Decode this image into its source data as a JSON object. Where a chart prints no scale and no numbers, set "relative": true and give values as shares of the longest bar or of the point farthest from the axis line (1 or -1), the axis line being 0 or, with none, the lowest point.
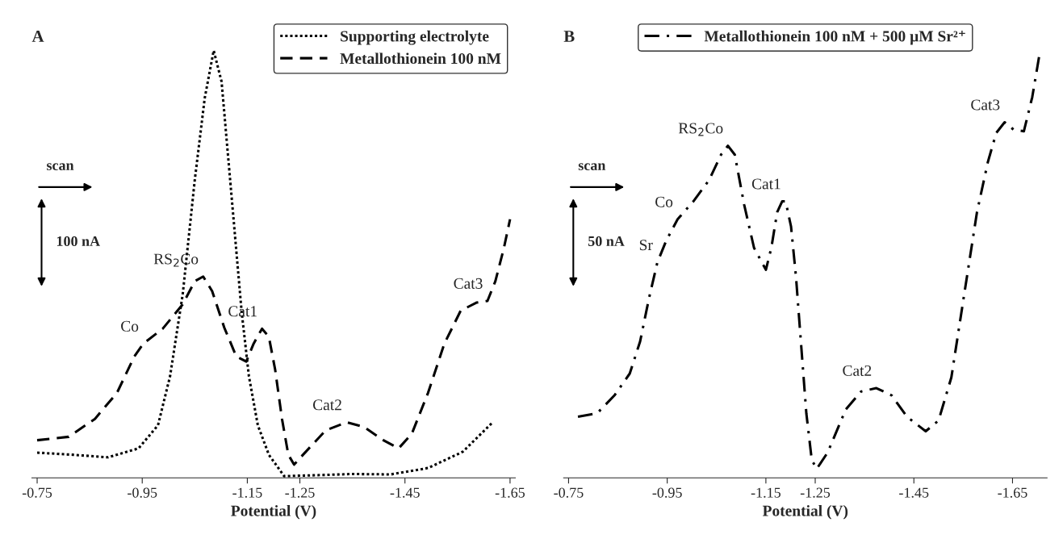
{
  "chart_data": [
    {
      "type": "line",
      "title": "A",
      "xlabel": "Potential (V)",
      "relative": true,
      "xlim": [
        -0.74,
        -1.66
      ],
      "xticks": [
        -0.75,
        -0.95,
        -1.15,
        -1.25,
        -1.45,
        -1.65
      ],
      "grid": false,
      "legend": "top right",
      "marker": "none",
      "annotations": [
        "scan",
        "100 nA",
        {
          "text": "Co",
          "x": -0.952,
          "y": 0.314
        },
        {
          "text": "RS$_{2}$Co",
          "x": -1.066,
          "y": 0.471
        },
        {
          "text": "Cat1",
          "x": -1.178,
          "y": 0.349
        },
        {
          "text": "Cat2",
          "x": -1.339,
          "y": 0.13
        },
        {
          "text": "Cat3",
          "x": -1.607,
          "y": 0.414
        }
      ],
      "series": [
        {
          "name": "Supporting electrolyte",
          "color": "#000000",
          "line_style": "dotted",
          "x": [
            -0.75,
            -0.818,
            -0.885,
            -0.943,
            -0.98,
            -1.003,
            -1.027,
            -1.05,
            -1.069,
            -1.086,
            -1.101,
            -1.12,
            -1.139,
            -1.153,
            -1.17,
            -1.191,
            -1.22,
            -1.278,
            -1.35,
            -1.423,
            -1.494,
            -1.56,
            -1.617
          ],
          "values": [
            0.059,
            0.054,
            0.048,
            0.069,
            0.123,
            0.238,
            0.429,
            0.697,
            0.889,
            1.0,
            0.927,
            0.659,
            0.391,
            0.238,
            0.123,
            0.054,
            0.004,
            0.006,
            0.009,
            0.008,
            0.023,
            0.061,
            0.13
          ]
        },
        {
          "name": "Metallothionein 100 nM",
          "color": "#000000",
          "line_style": "dashed",
          "x": [
            -0.75,
            -0.81,
            -0.86,
            -0.902,
            -0.935,
            -0.952,
            -0.989,
            -1.027,
            -1.05,
            -1.066,
            -1.083,
            -1.106,
            -1.129,
            -1.148,
            -1.162,
            -1.178,
            -1.191,
            -1.203,
            -1.216,
            -1.228,
            -1.239,
            -1.256,
            -1.299,
            -1.339,
            -1.372,
            -1.409,
            -1.438,
            -1.463,
            -1.494,
            -1.525,
            -1.556,
            -1.586,
            -1.607,
            -1.622,
            -1.638,
            -1.65
          ],
          "values": [
            0.088,
            0.096,
            0.138,
            0.199,
            0.284,
            0.314,
            0.349,
            0.406,
            0.46,
            0.471,
            0.437,
            0.352,
            0.284,
            0.272,
            0.314,
            0.349,
            0.33,
            0.253,
            0.138,
            0.054,
            0.031,
            0.054,
            0.111,
            0.13,
            0.119,
            0.088,
            0.069,
            0.103,
            0.199,
            0.314,
            0.391,
            0.41,
            0.414,
            0.46,
            0.536,
            0.605
          ]
        }
      ]
    },
    {
      "type": "line",
      "title": "B",
      "xlabel": "Potential (V)",
      "relative": true,
      "xlim": [
        -0.74,
        -1.72
      ],
      "xticks": [
        -0.75,
        -0.95,
        -1.15,
        -1.25,
        -1.45,
        -1.65
      ],
      "grid": false,
      "legend": "top",
      "marker": "none",
      "annotations": [
        "scan",
        "50 nA",
        {
          "text": "Sr",
          "x": -0.93,
          "y": 0.504
        },
        {
          "text": "Co",
          "x": -0.971,
          "y": 0.605
        },
        {
          "text": "RS$_{2}$Co",
          "x": -1.073,
          "y": 0.777
        },
        {
          "text": "Cat1",
          "x": -1.19,
          "y": 0.647
        },
        {
          "text": "Cat2",
          "x": -1.374,
          "y": 0.21
        },
        {
          "text": "Cat3",
          "x": -1.634,
          "y": 0.832
        }
      ],
      "series": [
        {
          "name": "Metallothionein 100 nM + 500 µM Sr²⁺",
          "color": "#000000",
          "line_style": "dashdot",
          "x": [
            -0.769,
            -0.808,
            -0.843,
            -0.874,
            -0.895,
            -0.913,
            -0.93,
            -0.948,
            -0.971,
            -1.003,
            -1.035,
            -1.059,
            -1.073,
            -1.087,
            -1.106,
            -1.126,
            -1.15,
            -1.161,
            -1.173,
            -1.183,
            -1.19,
            -1.201,
            -1.211,
            -1.222,
            -1.232,
            -1.243,
            -1.253,
            -1.275,
            -1.312,
            -1.343,
            -1.374,
            -1.405,
            -1.436,
            -1.474,
            -1.5,
            -1.526,
            -1.552,
            -1.578,
            -1.6,
            -1.617,
            -1.634,
            -1.652,
            -1.673,
            -1.69,
            -1.706
          ],
          "values": [
            0.143,
            0.151,
            0.193,
            0.244,
            0.319,
            0.42,
            0.504,
            0.555,
            0.605,
            0.647,
            0.697,
            0.756,
            0.777,
            0.756,
            0.639,
            0.538,
            0.487,
            0.538,
            0.622,
            0.647,
            0.647,
            0.588,
            0.471,
            0.303,
            0.151,
            0.042,
            0.021,
            0.059,
            0.16,
            0.202,
            0.21,
            0.193,
            0.143,
            0.109,
            0.134,
            0.235,
            0.429,
            0.622,
            0.739,
            0.807,
            0.832,
            0.815,
            0.811,
            0.891,
            1.0
          ]
        }
      ]
    }
  ]
}
